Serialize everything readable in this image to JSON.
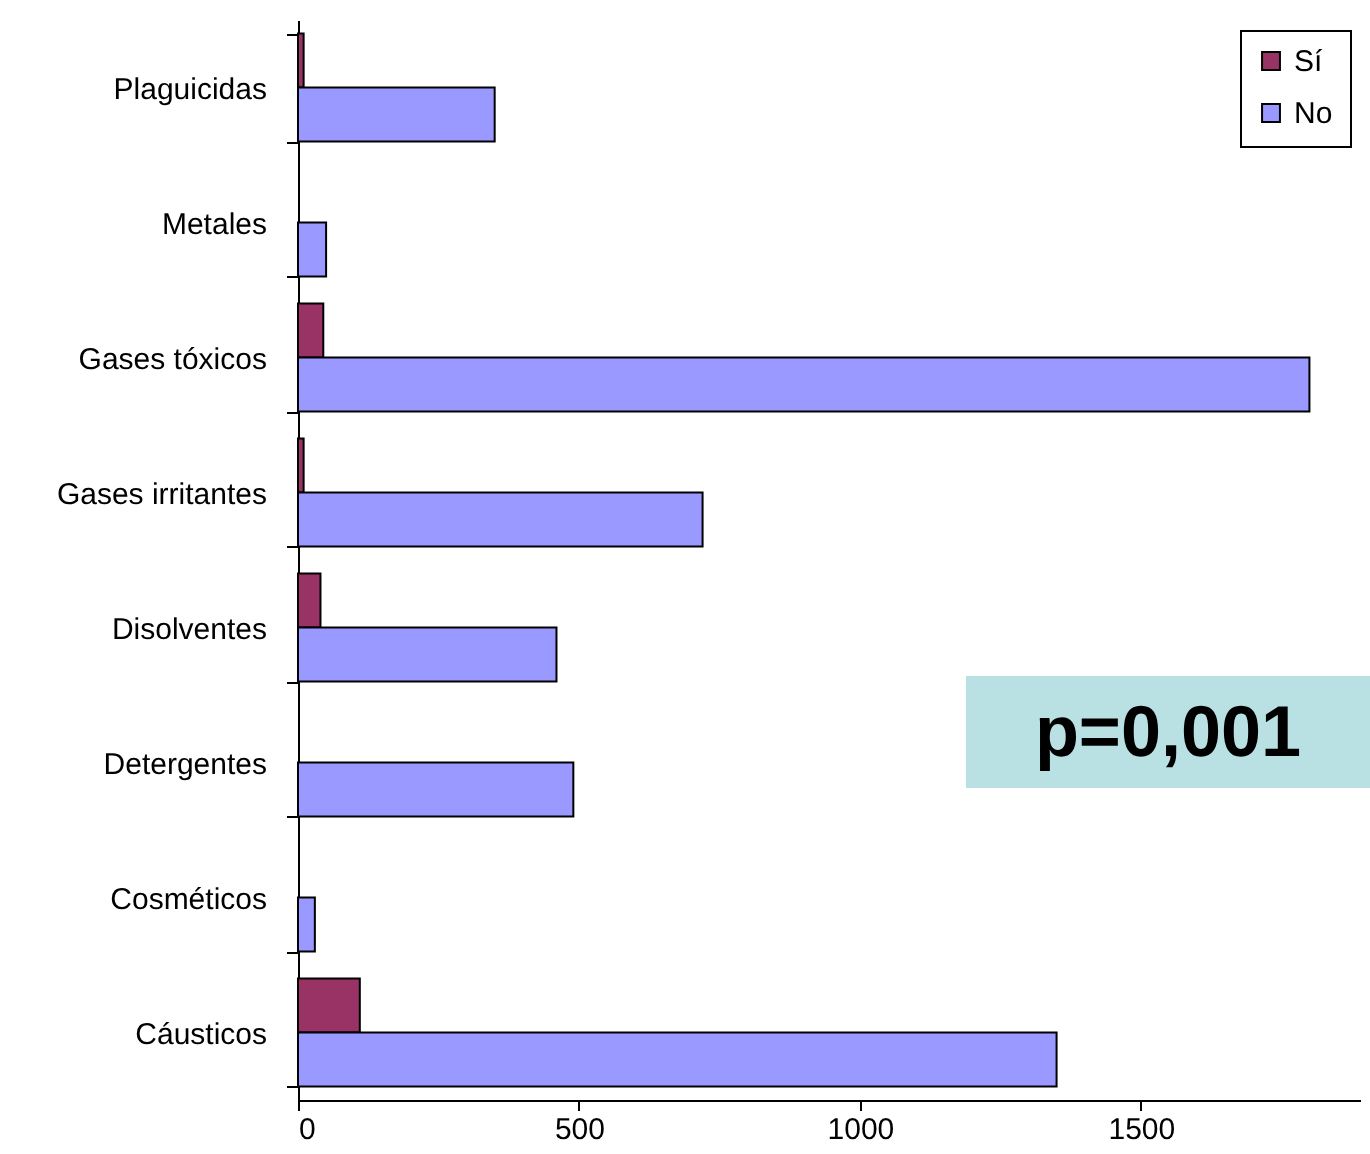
{
  "chart_data": {
    "type": "bar",
    "orientation": "horizontal",
    "categories": [
      "Plaguicidas",
      "Metales",
      "Gases tóxicos",
      "Gases irritantes",
      "Disolventes",
      "Detergentes",
      "Cosméticos",
      "Cáusticos"
    ],
    "series": [
      {
        "name": "Sí",
        "color": "#993366",
        "values": [
          10,
          null,
          45,
          10,
          40,
          null,
          null,
          110
        ]
      },
      {
        "name": "No",
        "color": "#9999ff",
        "values": [
          350,
          50,
          1800,
          720,
          460,
          490,
          30,
          1350
        ]
      }
    ],
    "xlim": [
      0,
      1890
    ],
    "xticks": [
      0,
      500,
      1000,
      1500
    ],
    "grid": false,
    "legend": "top right",
    "annotations": [
      "p=0,001"
    ]
  }
}
